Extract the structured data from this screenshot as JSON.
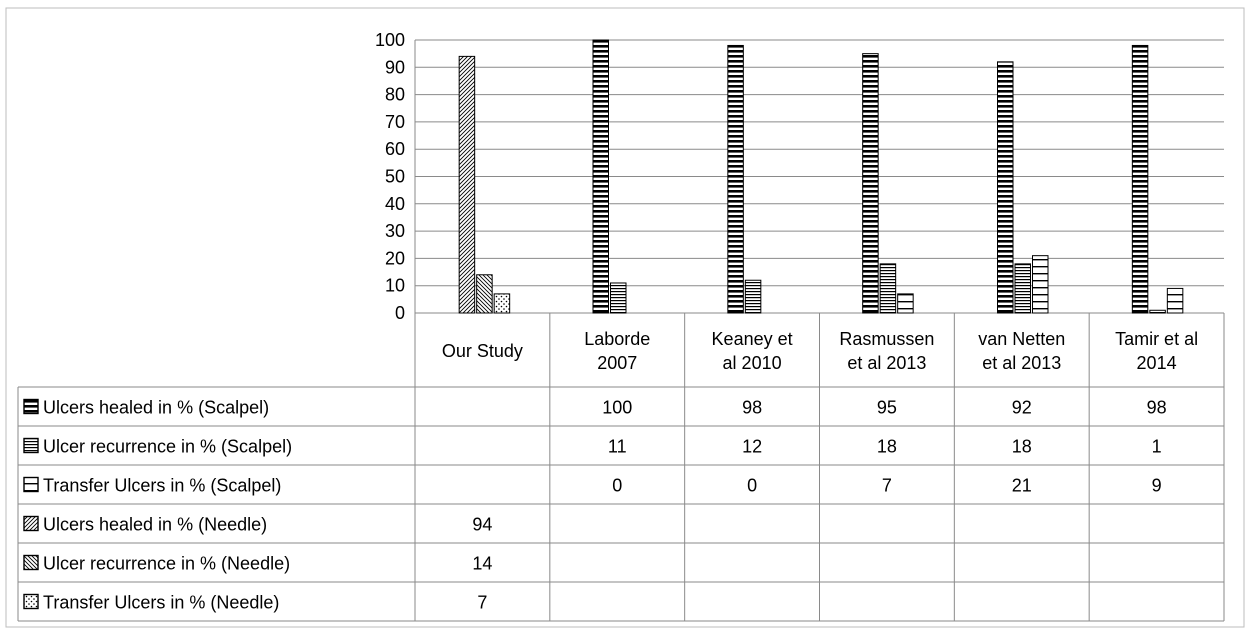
{
  "chart_data": {
    "type": "bar",
    "title": "",
    "xlabel": "",
    "ylabel": "",
    "ylim": [
      0,
      100
    ],
    "yticks": [
      0,
      10,
      20,
      30,
      40,
      50,
      60,
      70,
      80,
      90,
      100
    ],
    "grid": true,
    "legend": "data-table",
    "categories": [
      [
        "Our Study"
      ],
      [
        "Laborde",
        "2007"
      ],
      [
        "Keaney et",
        "al 2010"
      ],
      [
        "Rasmussen",
        "et al 2013"
      ],
      [
        "van Netten",
        "et al 2013"
      ],
      [
        "Tamir et al",
        "2014"
      ]
    ],
    "series": [
      {
        "name": "Ulcers healed in % (Scalpel)",
        "pattern": "hlines-bold",
        "values": [
          null,
          100,
          98,
          95,
          92,
          98
        ]
      },
      {
        "name": "Ulcer recurrence in  % (Scalpel)",
        "pattern": "hlines-dense",
        "values": [
          null,
          11,
          12,
          18,
          18,
          1
        ]
      },
      {
        "name": "Transfer Ulcers in % (Scalpel)",
        "pattern": "hlines-wide",
        "values": [
          null,
          0,
          0,
          7,
          21,
          9
        ]
      },
      {
        "name": "Ulcers healed in % (Needle)",
        "pattern": "diag-up",
        "values": [
          94,
          null,
          null,
          null,
          null,
          null
        ]
      },
      {
        "name": "Ulcer recurrence in  % (Needle)",
        "pattern": "diag-down",
        "values": [
          14,
          null,
          null,
          null,
          null,
          null
        ]
      },
      {
        "name": "Transfer Ulcers in % (Needle)",
        "pattern": "dots",
        "values": [
          7,
          null,
          null,
          null,
          null,
          null
        ]
      }
    ]
  }
}
